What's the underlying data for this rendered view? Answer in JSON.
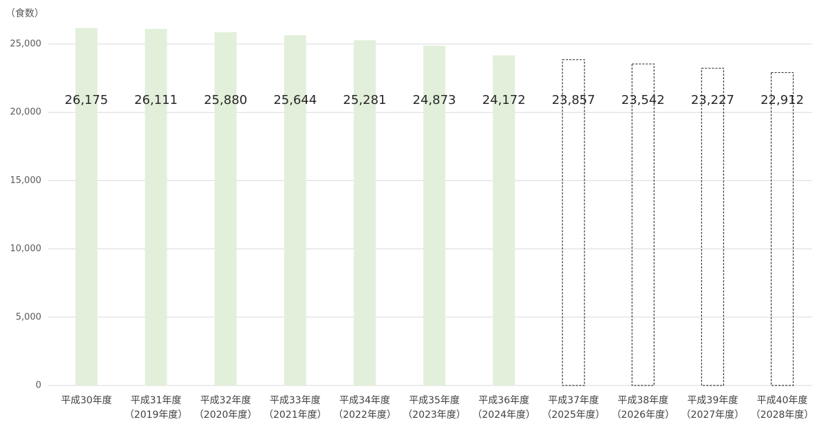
{
  "chart_data": {
    "type": "bar",
    "y_label": "（食数）",
    "categories": [
      "平成30年度",
      "平成31年度",
      "平成32年度",
      "平成33年度",
      "平成34年度",
      "平成35年度",
      "平成36年度",
      "平成37年度",
      "平成38年度",
      "平成39年度",
      "平成40年度"
    ],
    "category_sublabels": [
      null,
      "（2019年度）",
      "（2020年度）",
      "（2021年度）",
      "（2022年度）",
      "（2023年度）",
      "（2024年度）",
      "（2025年度）",
      "（2026年度）",
      "（2027年度）",
      "（2028年度）"
    ],
    "values": [
      26175,
      26111,
      25880,
      25644,
      25281,
      24873,
      24172,
      23857,
      23542,
      23227,
      22912
    ],
    "value_labels": [
      "26,175",
      "26,111",
      "25,880",
      "25,644",
      "25,281",
      "24,873",
      "24,172",
      "23,857",
      "23,542",
      "23,227",
      "22,912"
    ],
    "projected": [
      false,
      false,
      false,
      false,
      false,
      false,
      false,
      true,
      true,
      true,
      true
    ],
    "color": "#e2efda",
    "projected_stroke": "#333333",
    "ylim": [
      0,
      26500
    ],
    "yticks": [
      0,
      {
        "value": 5000,
        "label": "5,000"
      },
      {
        "value": 10000,
        "label": "10,000"
      },
      {
        "value": 15000,
        "label": "15,000"
      },
      {
        "value": 20000,
        "label": "20,000"
      },
      {
        "value": 25000,
        "label": "25,000"
      }
    ],
    "grid": true
  }
}
